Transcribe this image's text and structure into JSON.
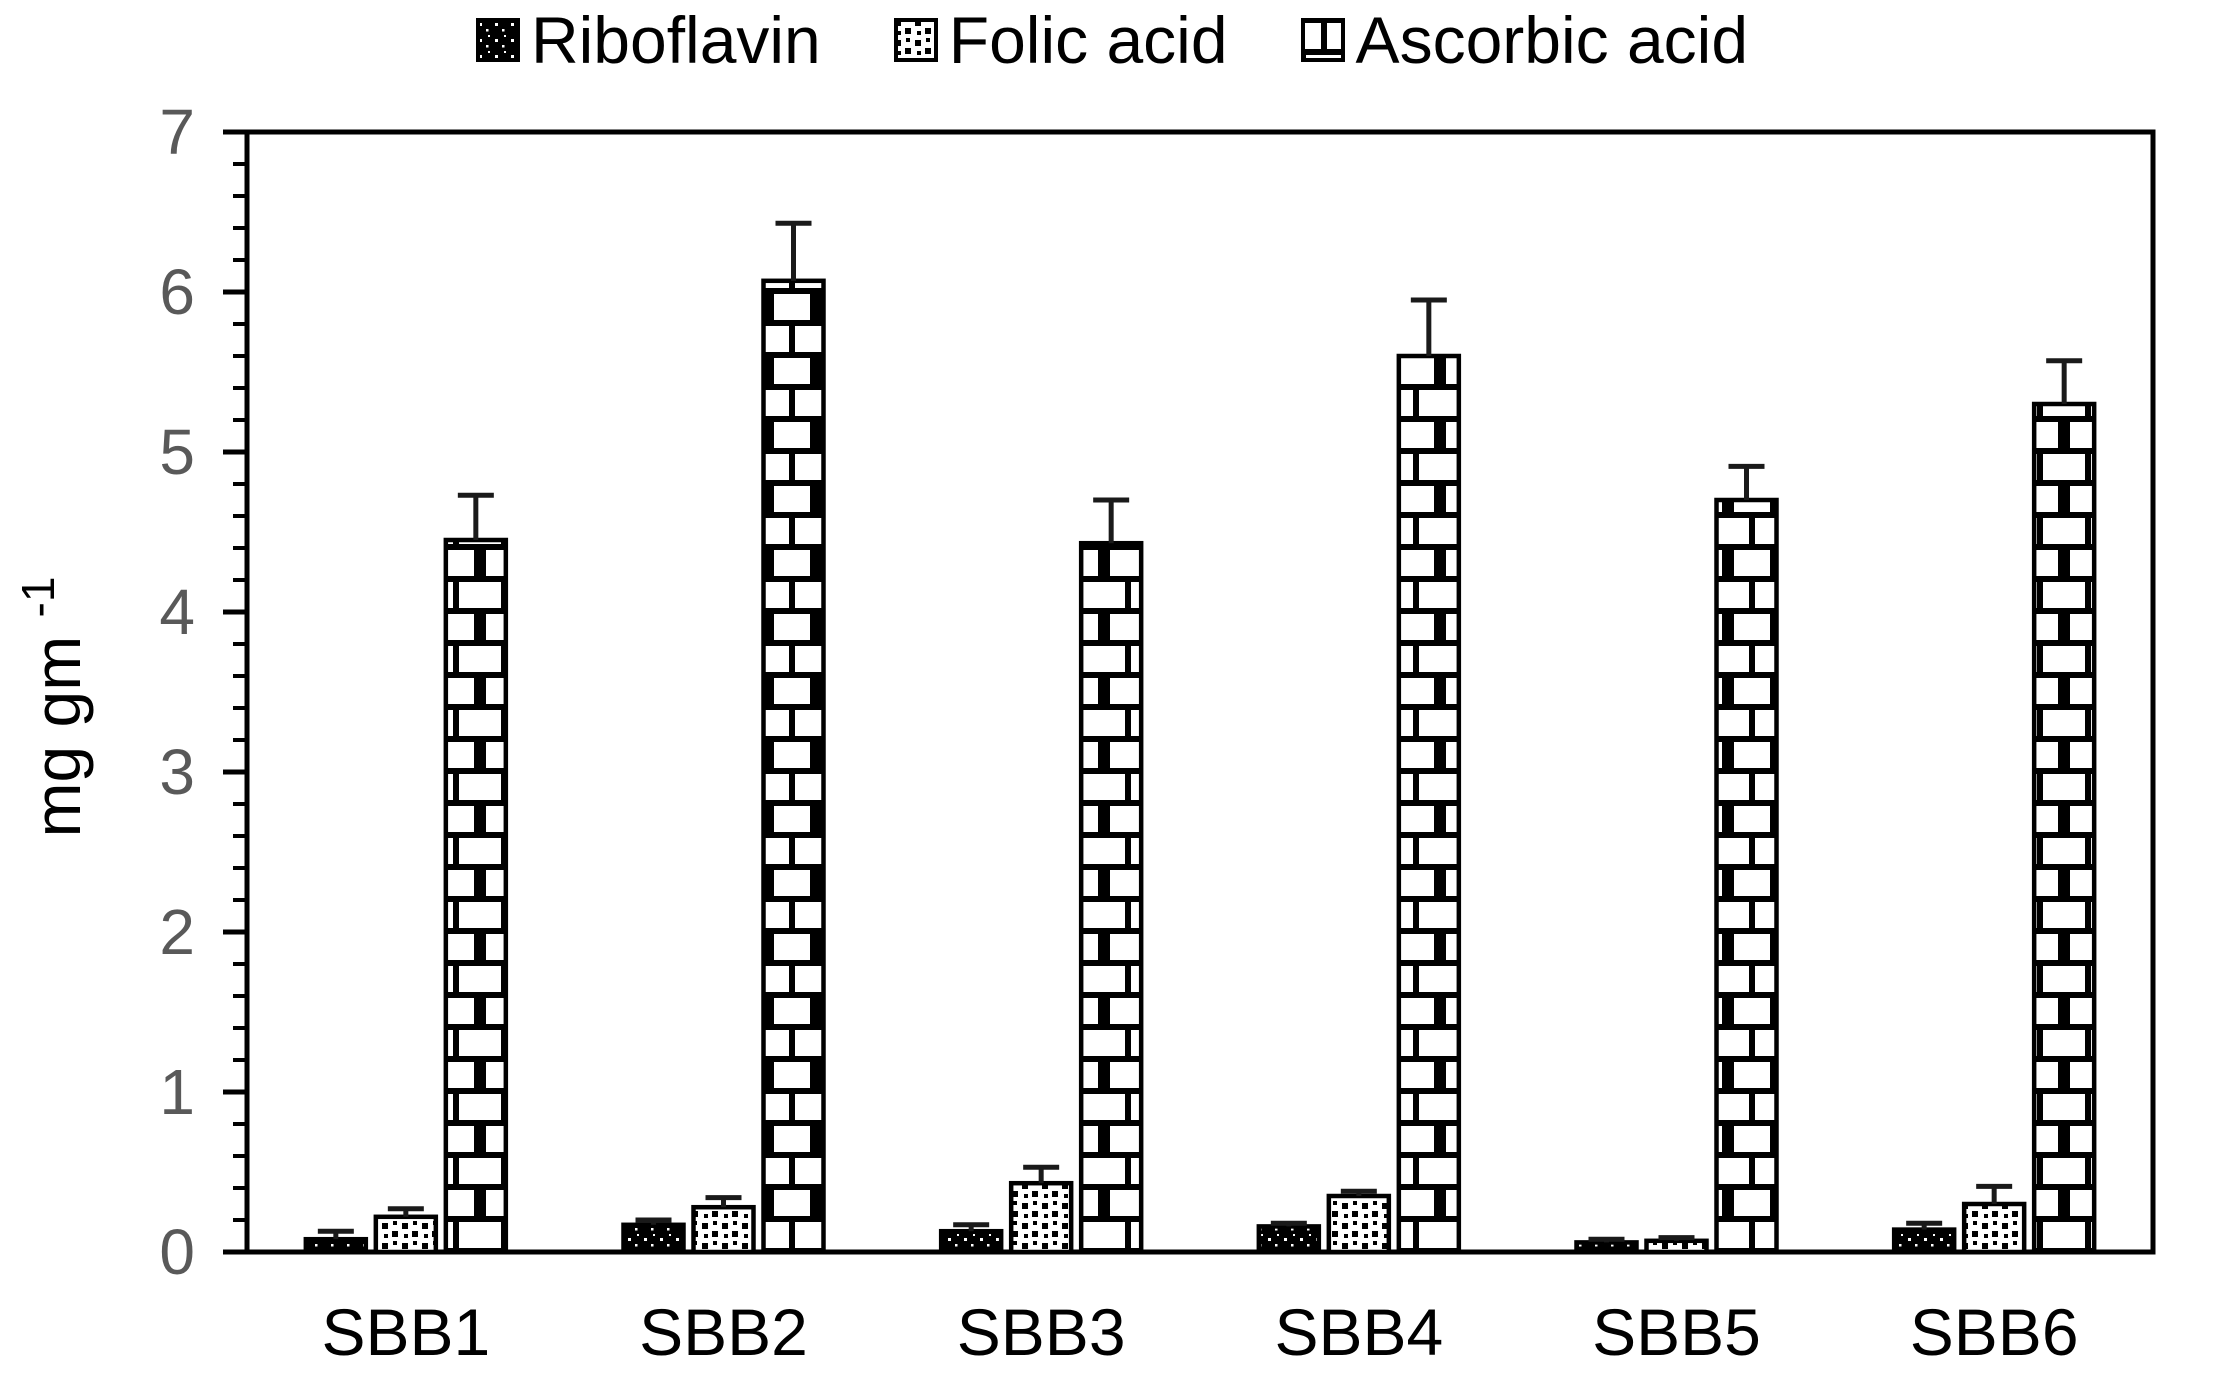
{
  "chart_data": {
    "type": "bar",
    "title": "",
    "xlabel": "",
    "ylabel": "mg gm ⁻¹",
    "ylabel_parts": {
      "base": "mg gm ",
      "sup": "-1"
    },
    "ylim": [
      0,
      7
    ],
    "ytick_major_step": 1,
    "ytick_minor_step": 0.2,
    "ytick_labels": [
      "0",
      "1",
      "2",
      "3",
      "4",
      "5",
      "6",
      "7"
    ],
    "grid": "off",
    "legend_position": "top",
    "categories": [
      "SBB1",
      "SBB2",
      "SBB3",
      "SBB4",
      "SBB5",
      "SBB6"
    ],
    "series": [
      {
        "name": "Riboflavin",
        "pattern": "solid-black-with-white-specks",
        "values": [
          0.08,
          0.17,
          0.13,
          0.16,
          0.06,
          0.14
        ],
        "errors": [
          0.05,
          0.03,
          0.04,
          0.02,
          0.02,
          0.04
        ]
      },
      {
        "name": "Folic acid",
        "pattern": "white-with-black-speckles",
        "values": [
          0.22,
          0.28,
          0.43,
          0.35,
          0.07,
          0.3
        ],
        "errors": [
          0.05,
          0.06,
          0.1,
          0.03,
          0.02,
          0.11
        ]
      },
      {
        "name": "Ascorbic acid",
        "pattern": "brick",
        "values": [
          4.45,
          6.07,
          4.43,
          5.6,
          4.7,
          5.3
        ],
        "errors": [
          0.28,
          0.36,
          0.27,
          0.35,
          0.21,
          0.27
        ]
      }
    ],
    "colors": {
      "bar_outline": "#000000",
      "axis": "#000000",
      "error_bar": "#1a1a1a",
      "ytick_label": "#595959",
      "xtick_label": "#000000",
      "legend_text": "#000000",
      "background": "#ffffff"
    }
  }
}
